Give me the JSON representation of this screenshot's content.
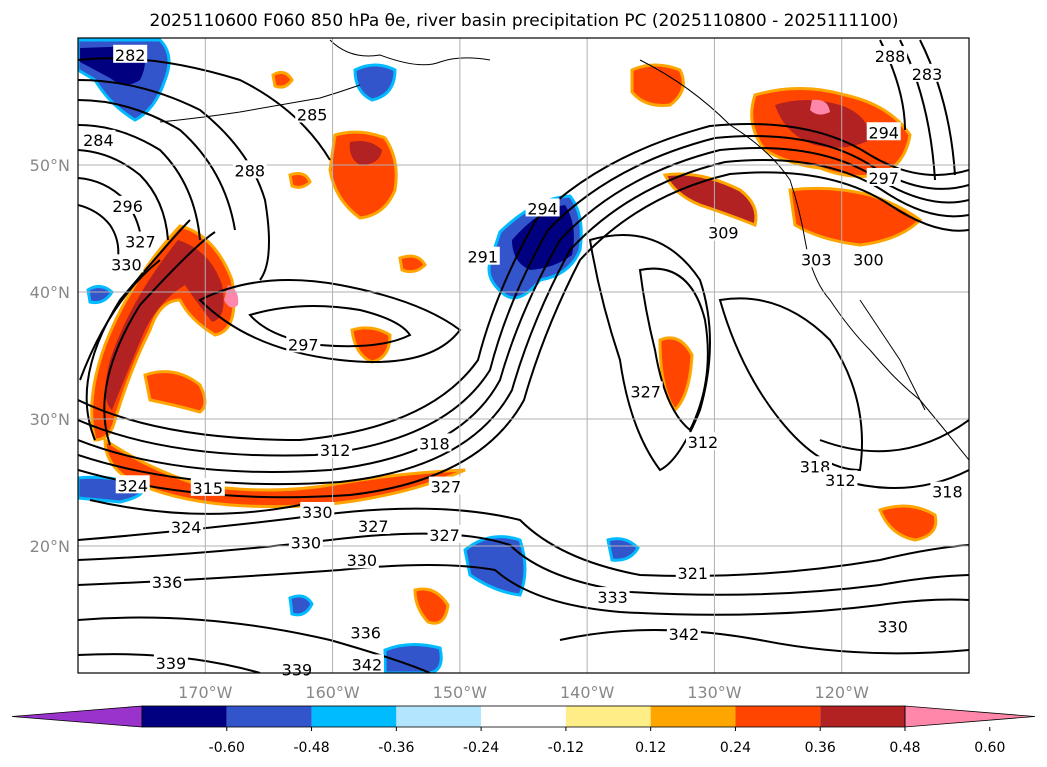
{
  "title": "2025110600 F060 850 hPa θe, river basin precipitation PC (2025110800 - 2025111100)",
  "map": {
    "lon_range": [
      -180,
      -110
    ],
    "lat_range": [
      10,
      60
    ],
    "lon_ticks": [
      {
        "lon": -170,
        "label": "170°W"
      },
      {
        "lon": -160,
        "label": "160°W"
      },
      {
        "lon": -150,
        "label": "150°W"
      },
      {
        "lon": -140,
        "label": "140°W"
      },
      {
        "lon": -130,
        "label": "130°W"
      },
      {
        "lon": -120,
        "label": "120°W"
      }
    ],
    "lat_ticks": [
      {
        "lat": 50,
        "label": "50°N"
      },
      {
        "lat": 40,
        "label": "40°N"
      },
      {
        "lat": 30,
        "label": "30°N"
      },
      {
        "lat": 20,
        "label": "20°N"
      }
    ],
    "grid": true
  },
  "colorbar": {
    "colors": [
      "#9933cc",
      "#000080",
      "#3355cc",
      "#00bbff",
      "#b3e5ff",
      "#ffffff",
      "#ffee88",
      "#ffa500",
      "#ff4500",
      "#b22222",
      "#ff88aa"
    ],
    "tick_labels": [
      "-0.60",
      "-0.48",
      "-0.36",
      "-0.24",
      "-0.12",
      "0.12",
      "0.24",
      "0.36",
      "0.48",
      "0.60"
    ]
  },
  "contour_labels": [
    {
      "text": "282",
      "lon": -175.9,
      "lat": 58.6
    },
    {
      "text": "285",
      "lon": -161.6,
      "lat": 53.9
    },
    {
      "text": "284",
      "lon": -178.4,
      "lat": 51.9
    },
    {
      "text": "288",
      "lon": -166.5,
      "lat": 49.5
    },
    {
      "text": "296",
      "lon": -176.1,
      "lat": 46.7
    },
    {
      "text": "327",
      "lon": -175.1,
      "lat": 43.9
    },
    {
      "text": "330",
      "lon": -176.2,
      "lat": 42.1
    },
    {
      "text": "294",
      "lon": -143.5,
      "lat": 46.5
    },
    {
      "text": "291",
      "lon": -148.2,
      "lat": 42.7
    },
    {
      "text": "297",
      "lon": -162.3,
      "lat": 35.8
    },
    {
      "text": "309",
      "lon": -129.3,
      "lat": 44.6
    },
    {
      "text": "303",
      "lon": -122.0,
      "lat": 42.5
    },
    {
      "text": "300",
      "lon": -117.9,
      "lat": 42.5
    },
    {
      "text": "288",
      "lon": -116.2,
      "lat": 58.5
    },
    {
      "text": "283",
      "lon": -113.3,
      "lat": 57.1
    },
    {
      "text": "294",
      "lon": -116.7,
      "lat": 52.5
    },
    {
      "text": "297",
      "lon": -116.7,
      "lat": 48.9
    },
    {
      "text": "327",
      "lon": -135.4,
      "lat": 32.1
    },
    {
      "text": "312",
      "lon": -130.9,
      "lat": 28.1
    },
    {
      "text": "312",
      "lon": -159.8,
      "lat": 27.5
    },
    {
      "text": "318",
      "lon": -152.0,
      "lat": 28.0
    },
    {
      "text": "315",
      "lon": -169.8,
      "lat": 24.5
    },
    {
      "text": "324",
      "lon": -175.7,
      "lat": 24.7
    },
    {
      "text": "327",
      "lon": -151.1,
      "lat": 24.6
    },
    {
      "text": "330",
      "lon": -161.2,
      "lat": 22.6
    },
    {
      "text": "327",
      "lon": -156.8,
      "lat": 21.5
    },
    {
      "text": "324",
      "lon": -171.5,
      "lat": 21.4
    },
    {
      "text": "330",
      "lon": -162.1,
      "lat": 20.2
    },
    {
      "text": "327",
      "lon": -151.2,
      "lat": 20.8
    },
    {
      "text": "330",
      "lon": -157.7,
      "lat": 18.8
    },
    {
      "text": "336",
      "lon": -173.0,
      "lat": 17.1
    },
    {
      "text": "318",
      "lon": -122.1,
      "lat": 26.2
    },
    {
      "text": "312",
      "lon": -120.1,
      "lat": 25.1
    },
    {
      "text": "318",
      "lon": -111.7,
      "lat": 24.2
    },
    {
      "text": "321",
      "lon": -131.7,
      "lat": 17.8
    },
    {
      "text": "333",
      "lon": -138.0,
      "lat": 15.9
    },
    {
      "text": "336",
      "lon": -157.4,
      "lat": 13.1
    },
    {
      "text": "342",
      "lon": -132.4,
      "lat": 13.0
    },
    {
      "text": "330",
      "lon": -116.0,
      "lat": 13.6
    },
    {
      "text": "339",
      "lon": -172.7,
      "lat": 10.7
    },
    {
      "text": "339",
      "lon": -162.8,
      "lat": 10.2
    },
    {
      "text": "342",
      "lon": -157.3,
      "lat": 10.6
    }
  ]
}
